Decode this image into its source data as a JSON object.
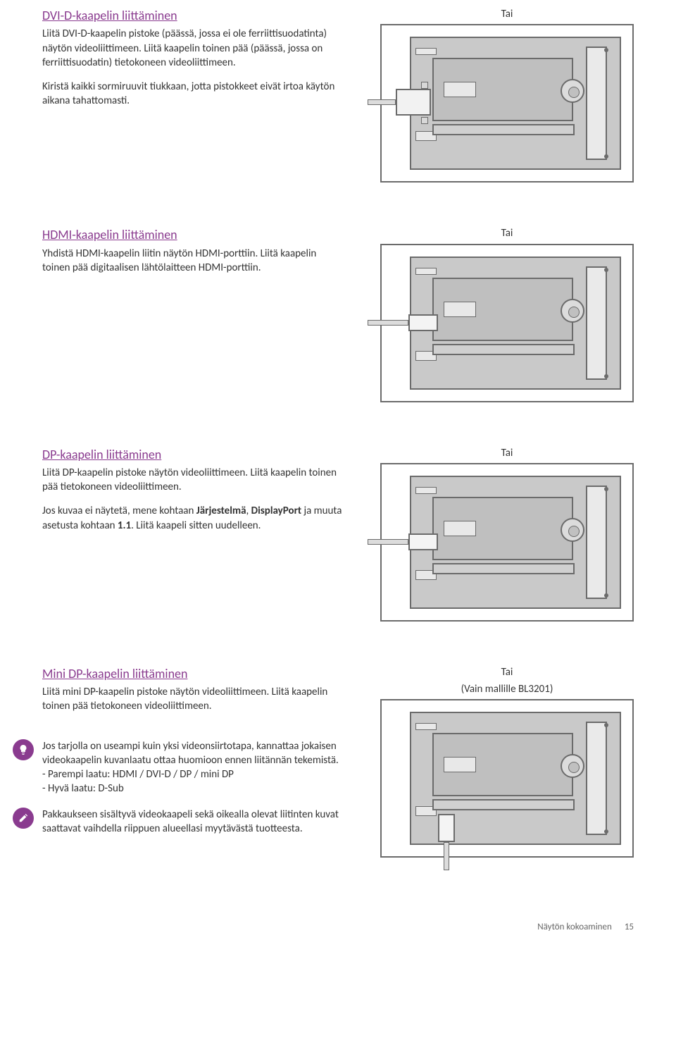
{
  "sections": [
    {
      "heading": "DVI-D-kaapelin liittäminen",
      "tai": "Tai",
      "paragraphs": [
        "Liitä DVI-D-kaapelin pistoke (päässä, jossa ei ole ferriittisuodatinta) näytön videoliittimeen. Liitä kaapelin toinen pää (päässä, jossa on ferriittisuodatin) tietokoneen videoliittimeen.",
        "Kiristä kaikki sormiruuvit tiukkaan, jotta pistokkeet eivät irtoa käytön aikana tahattomasti."
      ]
    },
    {
      "heading": "HDMI-kaapelin liittäminen",
      "tai": "Tai",
      "paragraphs": [
        "Yhdistä HDMI-kaapelin liitin näytön HDMI-porttiin. Liitä kaapelin toinen pää digitaalisen lähtölaitteen HDMI-porttiin."
      ]
    },
    {
      "heading": "DP-kaapelin liittäminen",
      "tai": "Tai",
      "paragraphs": [
        "Liitä DP-kaapelin pistoke näytön videoliittimeen. Liitä kaapelin toinen pää tietokoneen videoliittimeen."
      ],
      "extra_html": "Jos kuvaa ei näytetä, mene kohtaan <span class=\"b\">Järjestelmä</span>, <span class=\"b\">DisplayPort</span> ja muuta asetusta kohtaan <span class=\"b\">1.1</span>. Liitä kaapeli sitten uudelleen."
    },
    {
      "heading": "Mini DP-kaapelin liittäminen",
      "tai": "Tai",
      "tai2": "(Vain mallille BL3201)",
      "paragraphs": [
        "Liitä mini DP-kaapelin pistoke näytön videoliittimeen. Liitä kaapelin toinen pää tietokoneen videoliittimeen."
      ]
    }
  ],
  "notes": [
    {
      "icon": "bulb",
      "text": "Jos tarjolla on useampi kuin yksi videonsiirtotapa, kannattaa jokaisen videokaapelin kuvanlaatu ottaa huomioon ennen liitännän tekemistä.",
      "lines": [
        "- Parempi laatu: HDMI / DVI-D / DP / mini DP",
        "- Hyvä laatu: D-Sub"
      ]
    },
    {
      "icon": "pencil",
      "text": "Pakkaukseen sisältyvä videokaapeli sekä oikealla olevat liitinten kuvat saattavat vaihdella riippuen alueellasi myytävästä tuotteesta.",
      "lines": []
    }
  ],
  "footer": {
    "title": "Näytön kokoaminen",
    "page": "15"
  },
  "colors": {
    "heading": "#8a3b8f",
    "text": "#333333",
    "illus_border": "#6b6b6b",
    "illus_fill": "#c9c9c9"
  }
}
